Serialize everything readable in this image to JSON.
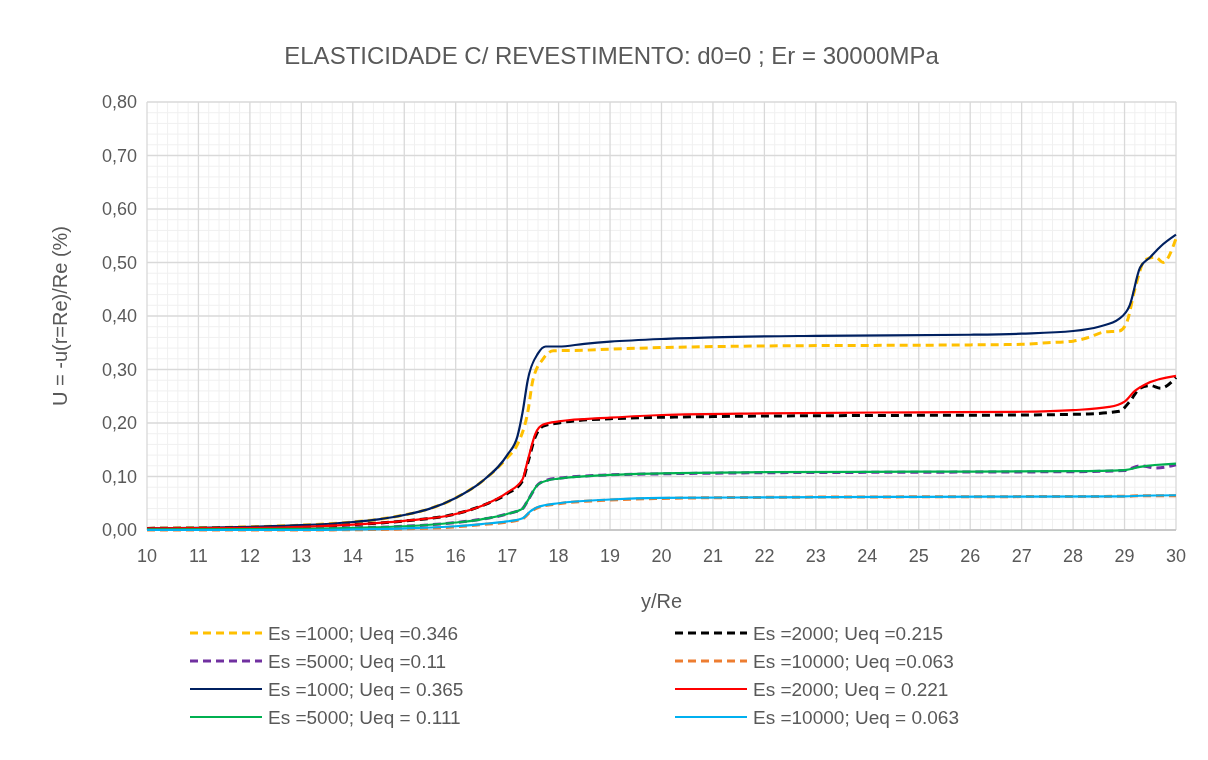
{
  "chart_data": {
    "type": "line",
    "title": "ELASTICIDADE C/ REVESTIMENTO: d0=0 ; Er = 30000MPa",
    "xlabel": "y/Re",
    "ylabel": "U = -u(r=Re)/Re (%)",
    "xlim": [
      10,
      30
    ],
    "xticks": [
      10,
      11,
      12,
      13,
      14,
      15,
      16,
      17,
      18,
      19,
      20,
      21,
      22,
      23,
      24,
      25,
      26,
      27,
      28,
      29,
      30
    ],
    "ylim": [
      0,
      0.8
    ],
    "yticks": [
      {
        "value": 0,
        "label": "0,00"
      },
      {
        "value": 0.1,
        "label": "0,10"
      },
      {
        "value": 0.2,
        "label": "0,20"
      },
      {
        "value": 0.3,
        "label": "0,30"
      },
      {
        "value": 0.4,
        "label": "0,40"
      },
      {
        "value": 0.5,
        "label": "0,50"
      },
      {
        "value": 0.6,
        "label": "0,60"
      },
      {
        "value": 0.7,
        "label": "0,70"
      },
      {
        "value": 0.8,
        "label": "0,80"
      }
    ],
    "grid": true,
    "legend": "bottom",
    "series": [
      {
        "name": "Es =1000; Ueq =0.346",
        "color": "#ffc000",
        "line_style": "dashed",
        "x": [
          10,
          11,
          12,
          13,
          14,
          14.5,
          15,
          15.5,
          16,
          16.5,
          17,
          17.2,
          17.4,
          17.5,
          17.7,
          17.9,
          18.5,
          19,
          20,
          22,
          24,
          26,
          27,
          27.5,
          28,
          28.3,
          28.6,
          28.9,
          29.05,
          29.2,
          29.4,
          29.6,
          29.75,
          30
        ],
        "values": [
          0.003,
          0.004,
          0.006,
          0.009,
          0.015,
          0.02,
          0.028,
          0.04,
          0.06,
          0.09,
          0.135,
          0.16,
          0.22,
          0.28,
          0.32,
          0.335,
          0.336,
          0.338,
          0.341,
          0.344,
          0.345,
          0.346,
          0.347,
          0.35,
          0.353,
          0.36,
          0.37,
          0.372,
          0.39,
          0.45,
          0.505,
          0.51,
          0.5,
          0.545
        ]
      },
      {
        "name": "Es =2000; Ueq =0.215",
        "color": "#000000",
        "line_style": "dashed",
        "x": [
          10,
          12,
          13,
          14,
          15,
          16,
          16.5,
          17,
          17.3,
          17.4,
          17.55,
          17.7,
          18,
          19,
          21,
          24,
          27,
          28.3,
          28.9,
          29.1,
          29.3,
          29.5,
          29.7,
          30
        ],
        "values": [
          0.003,
          0.004,
          0.006,
          0.01,
          0.017,
          0.03,
          0.045,
          0.068,
          0.092,
          0.125,
          0.175,
          0.194,
          0.2,
          0.208,
          0.212,
          0.214,
          0.215,
          0.217,
          0.222,
          0.24,
          0.265,
          0.27,
          0.265,
          0.285
        ]
      },
      {
        "name": "Es =5000; Ueq =0.11",
        "color": "#7030a0",
        "line_style": "dashed",
        "x": [
          10,
          13,
          14,
          15,
          16,
          16.5,
          17,
          17.3,
          17.4,
          17.6,
          17.8,
          18,
          19,
          20,
          22,
          25,
          28,
          29,
          29.3,
          29.6,
          30
        ],
        "values": [
          0.001,
          0.002,
          0.004,
          0.007,
          0.014,
          0.02,
          0.03,
          0.04,
          0.055,
          0.085,
          0.094,
          0.097,
          0.103,
          0.105,
          0.107,
          0.108,
          0.109,
          0.111,
          0.12,
          0.116,
          0.122
        ]
      },
      {
        "name": "Es =10000; Ueq =0.063",
        "color": "#ed7d31",
        "line_style": "dashed",
        "x": [
          10,
          13,
          14,
          15,
          16,
          16.5,
          17,
          17.3,
          17.45,
          17.6,
          18,
          19,
          20,
          22,
          25,
          29,
          29.3,
          30
        ],
        "values": [
          0,
          0,
          0.0005,
          0.002,
          0.006,
          0.01,
          0.015,
          0.021,
          0.034,
          0.042,
          0.049,
          0.056,
          0.059,
          0.061,
          0.062,
          0.063,
          0.064,
          0.064
        ]
      },
      {
        "name": "Es =1000; Ueq = 0.365",
        "color": "#002060",
        "line_style": "solid",
        "x": [
          10,
          11,
          12,
          13,
          14,
          14.5,
          15,
          15.5,
          16,
          16.5,
          17,
          17.2,
          17.3,
          17.4,
          17.6,
          17.75,
          18,
          18.5,
          19,
          20,
          21,
          23,
          26,
          27,
          28,
          28.5,
          28.9,
          29.1,
          29.3,
          29.5,
          29.7,
          30
        ],
        "values": [
          0.003,
          0.004,
          0.006,
          0.009,
          0.015,
          0.02,
          0.028,
          0.04,
          0.06,
          0.09,
          0.14,
          0.175,
          0.22,
          0.28,
          0.33,
          0.343,
          0.343,
          0.348,
          0.352,
          0.357,
          0.36,
          0.363,
          0.365,
          0.367,
          0.372,
          0.38,
          0.395,
          0.42,
          0.49,
          0.51,
          0.53,
          0.552
        ]
      },
      {
        "name": "Es =2000; Ueq = 0.221",
        "color": "#ff0000",
        "line_style": "solid",
        "x": [
          10,
          12,
          13,
          14,
          15,
          16,
          16.5,
          17,
          17.3,
          17.4,
          17.55,
          17.7,
          18,
          19,
          20,
          22,
          25,
          27,
          28,
          28.7,
          29,
          29.2,
          29.4,
          30
        ],
        "values": [
          0.003,
          0.004,
          0.006,
          0.01,
          0.017,
          0.03,
          0.045,
          0.07,
          0.095,
          0.13,
          0.18,
          0.197,
          0.203,
          0.21,
          0.215,
          0.218,
          0.22,
          0.221,
          0.224,
          0.23,
          0.24,
          0.26,
          0.272,
          0.288
        ]
      },
      {
        "name": "Es =5000; Ueq = 0.111",
        "color": "#00b050",
        "line_style": "solid",
        "x": [
          10,
          13,
          14,
          15,
          16,
          16.5,
          17,
          17.3,
          17.4,
          17.6,
          17.8,
          18,
          19,
          20,
          22,
          25,
          28,
          29,
          29.3,
          30
        ],
        "values": [
          0.001,
          0.002,
          0.004,
          0.007,
          0.014,
          0.02,
          0.03,
          0.04,
          0.055,
          0.085,
          0.093,
          0.096,
          0.103,
          0.106,
          0.108,
          0.109,
          0.11,
          0.112,
          0.118,
          0.124
        ]
      },
      {
        "name": "Es =10000; Ueq = 0.063",
        "color": "#00b0f0",
        "line_style": "solid",
        "x": [
          10,
          13,
          14,
          15,
          16,
          16.5,
          17,
          17.3,
          17.45,
          17.6,
          18,
          19,
          20,
          22,
          25,
          29,
          29.3,
          30
        ],
        "values": [
          0,
          0,
          0.001,
          0.003,
          0.007,
          0.011,
          0.016,
          0.022,
          0.035,
          0.043,
          0.05,
          0.057,
          0.06,
          0.061,
          0.062,
          0.063,
          0.064,
          0.065
        ]
      }
    ]
  }
}
